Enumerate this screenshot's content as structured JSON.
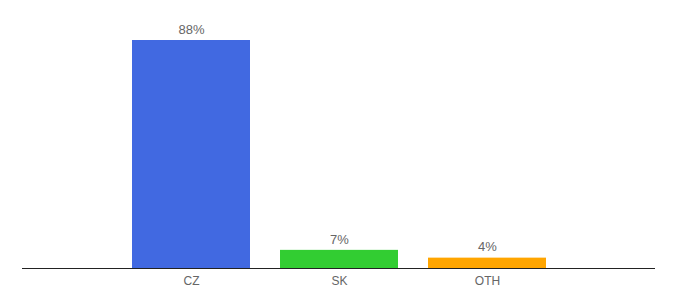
{
  "chart_data": {
    "type": "bar",
    "categories": [
      "CZ",
      "SK",
      "OTH"
    ],
    "values": [
      88,
      7,
      4
    ],
    "value_labels": [
      "88%",
      "7%",
      "4%"
    ],
    "colors": [
      "#4169e1",
      "#32cd32",
      "#ffa500"
    ],
    "data_labels": true,
    "tick_labels": "x"
  }
}
